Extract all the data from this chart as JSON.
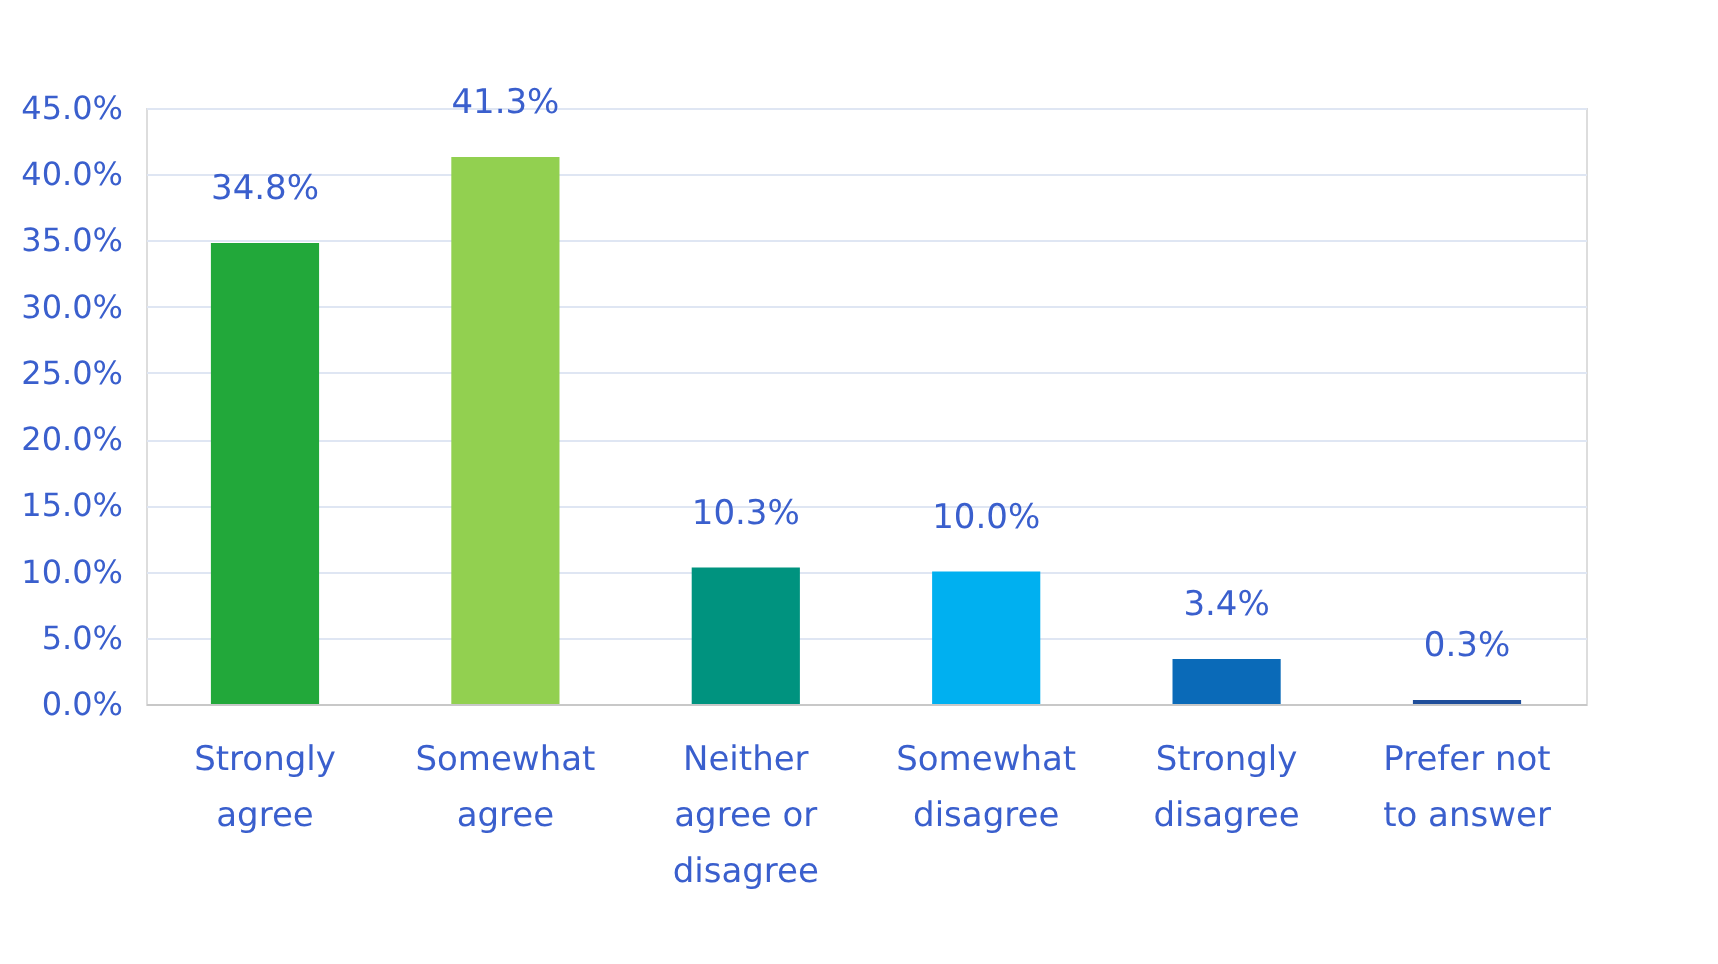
{
  "chart_data": {
    "type": "bar",
    "categories": [
      "Strongly agree",
      "Somewhat agree",
      "Neither agree or disagree",
      "Somewhat disagree",
      "Strongly disagree",
      "Prefer not to answer"
    ],
    "values": [
      34.8,
      41.3,
      10.3,
      10.0,
      3.4,
      0.3
    ],
    "colors": [
      "#22a83a",
      "#92d050",
      "#00937f",
      "#00b0f0",
      "#0a6ab8",
      "#1f4e9a"
    ],
    "value_labels": [
      "34.8%",
      "41.3%",
      "10.3%",
      "10.0%",
      "3.4%",
      "0.3%"
    ],
    "ylim": [
      0,
      45
    ],
    "yticks": [
      {
        "value": 0,
        "label": "0.0%"
      },
      {
        "value": 5,
        "label": "5.0%"
      },
      {
        "value": 10,
        "label": "10.0%"
      },
      {
        "value": 15,
        "label": "15.0%"
      },
      {
        "value": 20,
        "label": "20.0%"
      },
      {
        "value": 25,
        "label": "25.0%"
      },
      {
        "value": 30,
        "label": "30.0%"
      },
      {
        "value": 35,
        "label": "35.0%"
      },
      {
        "value": 40,
        "label": "40.0%"
      },
      {
        "value": 45,
        "label": "45.0%"
      }
    ],
    "grid": "y"
  }
}
